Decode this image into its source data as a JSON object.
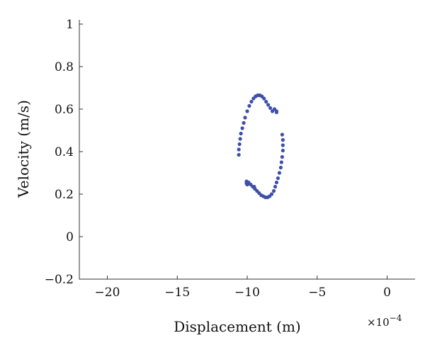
{
  "chart_data": {
    "type": "scatter",
    "xlabel": "Displacement (m)",
    "ylabel": "Velocity (m/s)",
    "x_exponent_label": "×10",
    "x_exponent_power": "−4",
    "xlim": [
      -22,
      2
    ],
    "ylim": [
      -0.2,
      1.02
    ],
    "x_ticks": [
      -20,
      -15,
      -10,
      -5,
      0
    ],
    "x_tick_labels": [
      "−20",
      "−15",
      "−10",
      "−5",
      "0"
    ],
    "y_ticks": [
      -0.2,
      0,
      0.2,
      0.4,
      0.6,
      0.8,
      1
    ],
    "y_tick_labels": [
      "−0.2",
      "0",
      "0.2",
      "0.4",
      "0.6",
      "0.8",
      "1"
    ],
    "grid": false,
    "point_color": "#3f4fa8",
    "series": [
      {
        "x": [
          -10.6,
          -10.6,
          -10.55,
          -10.5,
          -10.45,
          -10.35,
          -10.25,
          -10.15,
          -10.0,
          -9.85,
          -9.7,
          -9.55,
          -9.4,
          -9.25,
          -9.1,
          -8.95,
          -8.8,
          -8.65,
          -8.5,
          -8.35,
          -8.2,
          -8.05,
          -7.9,
          -7.9,
          -7.5,
          -7.45,
          -7.45,
          -7.45,
          -7.5,
          -7.55,
          -7.6,
          -7.7,
          -7.8,
          -7.9,
          -8.0,
          -8.1,
          -8.25,
          -8.4,
          -8.55,
          -8.7,
          -8.85,
          -9.0,
          -9.15,
          -9.3,
          -9.45,
          -9.6,
          -9.75,
          -9.9,
          -10.05,
          -10.05,
          -10.0,
          -9.5
        ],
        "y": [
          0.385,
          0.41,
          0.435,
          0.46,
          0.485,
          0.51,
          0.535,
          0.56,
          0.59,
          0.615,
          0.635,
          0.65,
          0.66,
          0.665,
          0.665,
          0.66,
          0.65,
          0.635,
          0.62,
          0.605,
          0.59,
          0.6,
          0.59,
          0.585,
          0.48,
          0.455,
          0.43,
          0.405,
          0.375,
          0.35,
          0.325,
          0.3,
          0.275,
          0.255,
          0.235,
          0.215,
          0.2,
          0.19,
          0.185,
          0.185,
          0.19,
          0.195,
          0.205,
          0.215,
          0.225,
          0.235,
          0.245,
          0.255,
          0.26,
          0.25,
          0.245,
          0.235
        ]
      }
    ]
  }
}
